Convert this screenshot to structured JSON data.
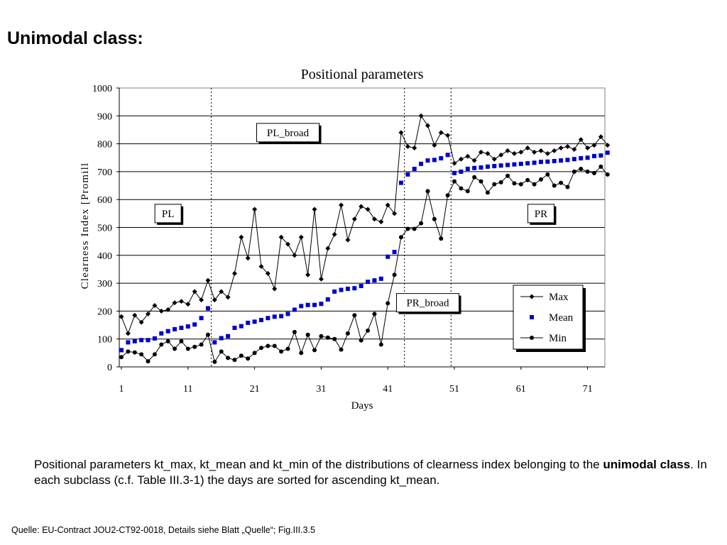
{
  "slide": {
    "title": "Unimodal class:",
    "caption_part1": "Positional parameters kt_max, kt_mean and kt_min of the distributions of clearness index belonging to the ",
    "caption_bold": "unimodal class",
    "caption_part2": ". In each subclass (c.f. Table III.3-1) the days are sorted for ascending kt_mean.",
    "source": "Quelle: EU-Contract JOU2-CT92-0018, Details siehe Blatt „Quelle“; Fig.III.3.5"
  },
  "chart_data": {
    "type": "line",
    "title": "Positional parameters",
    "xlabel": "Days",
    "ylabel": "Clearness Index [Promill",
    "xlim": [
      1,
      74
    ],
    "ylim": [
      0,
      1000
    ],
    "x_ticks": [
      1,
      11,
      21,
      31,
      41,
      51,
      61,
      71
    ],
    "y_ticks": [
      0,
      100,
      200,
      300,
      400,
      500,
      600,
      700,
      800,
      900,
      1000
    ],
    "grid": "horizontal",
    "legend_position": "bottom-right",
    "class_dividers_after_day": [
      14,
      43,
      50
    ],
    "regions": [
      {
        "label": "PL",
        "x_center": 8,
        "y": 550
      },
      {
        "label": "PL_broad",
        "x_center": 26,
        "y": 840
      },
      {
        "label": "PR_broad",
        "x_center": 47,
        "y": 230
      },
      {
        "label": "PR",
        "x_center": 64,
        "y": 550
      }
    ],
    "series": [
      {
        "name": "Max",
        "marker": "diamond",
        "color": "#000000",
        "values": [
          180,
          120,
          185,
          160,
          190,
          220,
          200,
          205,
          230,
          235,
          225,
          270,
          240,
          310,
          240,
          270,
          250,
          335,
          465,
          390,
          565,
          360,
          335,
          280,
          465,
          440,
          400,
          465,
          330,
          565,
          315,
          425,
          475,
          580,
          455,
          530,
          575,
          565,
          530,
          520,
          580,
          550,
          840,
          790,
          785,
          900,
          865,
          795,
          840,
          830,
          730,
          745,
          755,
          740,
          770,
          765,
          745,
          760,
          775,
          765,
          770,
          785,
          770,
          775,
          765,
          775,
          785,
          790,
          780,
          815,
          785,
          795,
          825,
          795
        ]
      },
      {
        "name": "Mean",
        "marker": "square",
        "color": "#0000cc",
        "values": [
          60,
          88,
          92,
          96,
          96,
          102,
          120,
          128,
          135,
          140,
          145,
          152,
          175,
          210,
          88,
          103,
          110,
          140,
          146,
          158,
          162,
          168,
          175,
          180,
          182,
          190,
          205,
          218,
          222,
          222,
          226,
          242,
          270,
          276,
          280,
          282,
          290,
          305,
          310,
          316,
          395,
          412,
          660,
          690,
          710,
          728,
          740,
          742,
          748,
          760,
          695,
          700,
          710,
          713,
          715,
          718,
          720,
          722,
          724,
          726,
          728,
          730,
          732,
          735,
          736,
          738,
          740,
          742,
          745,
          748,
          750,
          756,
          758,
          768
        ]
      },
      {
        "name": "Min",
        "marker": "circle",
        "color": "#000000",
        "values": [
          35,
          55,
          52,
          45,
          20,
          45,
          80,
          92,
          65,
          92,
          65,
          72,
          80,
          115,
          18,
          55,
          32,
          25,
          40,
          30,
          50,
          68,
          75,
          75,
          55,
          65,
          125,
          50,
          115,
          60,
          110,
          105,
          100,
          62,
          120,
          185,
          95,
          130,
          190,
          80,
          228,
          330,
          465,
          495,
          495,
          515,
          630,
          530,
          460,
          615,
          665,
          640,
          630,
          680,
          665,
          625,
          655,
          662,
          685,
          658,
          655,
          670,
          655,
          672,
          690,
          650,
          660,
          645,
          700,
          710,
          700,
          695,
          718,
          690
        ]
      }
    ]
  }
}
